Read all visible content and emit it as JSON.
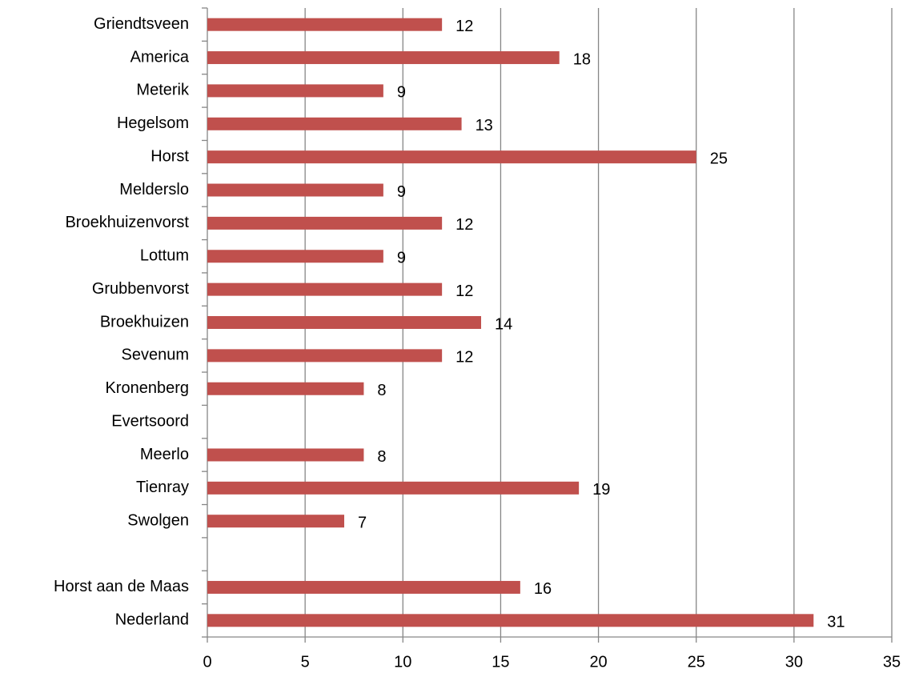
{
  "chart_data": {
    "type": "barh",
    "categories": [
      "Griendtsveen",
      "America",
      "Meterik",
      "Hegelsom",
      "Horst",
      "Melderslo",
      "Broekhuizenvorst",
      "Lottum",
      "Grubbenvorst",
      "Broekhuizen",
      "Sevenum",
      "Kronenberg",
      "Evertsoord",
      "Meerlo",
      "Tienray",
      "Swolgen",
      null,
      "Horst aan de Maas",
      "Nederland"
    ],
    "values": [
      12,
      18,
      9,
      13,
      25,
      9,
      12,
      9,
      12,
      14,
      12,
      8,
      null,
      8,
      19,
      7,
      null,
      16,
      31
    ],
    "color": "#c0504d",
    "xlim": [
      0,
      35
    ],
    "xticks": [
      0,
      5,
      10,
      15,
      20,
      25,
      30,
      35
    ],
    "grid": true
  }
}
